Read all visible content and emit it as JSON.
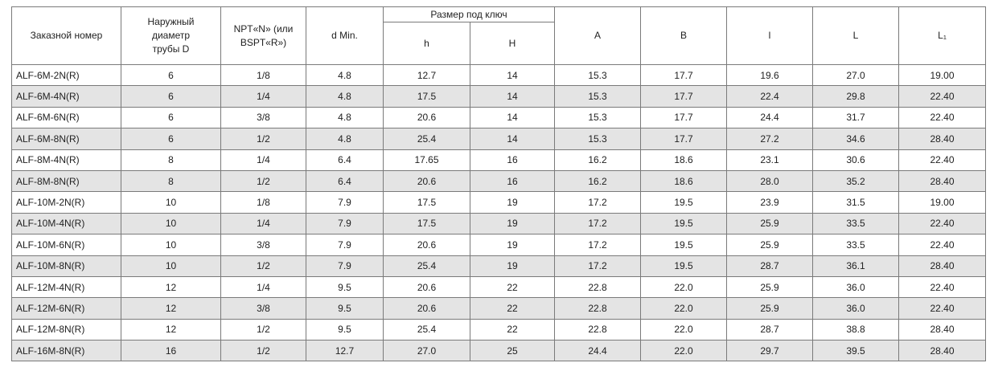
{
  "table": {
    "group": "Размер под ключ",
    "headers": [
      "Заказной номер",
      "Наружный диаметр трубы D",
      "NPT«N» (или BSPT«R»)",
      "d Min.",
      "h",
      "H",
      "A",
      "B",
      "l",
      "L",
      "L₁"
    ],
    "rows": [
      [
        "ALF-6M-2N(R)",
        "6",
        "1/8",
        "4.8",
        "12.7",
        "14",
        "15.3",
        "17.7",
        "19.6",
        "27.0",
        "19.00"
      ],
      [
        "ALF-6M-4N(R)",
        "6",
        "1/4",
        "4.8",
        "17.5",
        "14",
        "15.3",
        "17.7",
        "22.4",
        "29.8",
        "22.40"
      ],
      [
        "ALF-6M-6N(R)",
        "6",
        "3/8",
        "4.8",
        "20.6",
        "14",
        "15.3",
        "17.7",
        "24.4",
        "31.7",
        "22.40"
      ],
      [
        "ALF-6M-8N(R)",
        "6",
        "1/2",
        "4.8",
        "25.4",
        "14",
        "15.3",
        "17.7",
        "27.2",
        "34.6",
        "28.40"
      ],
      [
        "ALF-8M-4N(R)",
        "8",
        "1/4",
        "6.4",
        "17.65",
        "16",
        "16.2",
        "18.6",
        "23.1",
        "30.6",
        "22.40"
      ],
      [
        "ALF-8M-8N(R)",
        "8",
        "1/2",
        "6.4",
        "20.6",
        "16",
        "16.2",
        "18.6",
        "28.0",
        "35.2",
        "28.40"
      ],
      [
        "ALF-10M-2N(R)",
        "10",
        "1/8",
        "7.9",
        "17.5",
        "19",
        "17.2",
        "19.5",
        "23.9",
        "31.5",
        "19.00"
      ],
      [
        "ALF-10M-4N(R)",
        "10",
        "1/4",
        "7.9",
        "17.5",
        "19",
        "17.2",
        "19.5",
        "25.9",
        "33.5",
        "22.40"
      ],
      [
        "ALF-10M-6N(R)",
        "10",
        "3/8",
        "7.9",
        "20.6",
        "19",
        "17.2",
        "19.5",
        "25.9",
        "33.5",
        "22.40"
      ],
      [
        "ALF-10M-8N(R)",
        "10",
        "1/2",
        "7.9",
        "25.4",
        "19",
        "17.2",
        "19.5",
        "28.7",
        "36.1",
        "28.40"
      ],
      [
        "ALF-12M-4N(R)",
        "12",
        "1/4",
        "9.5",
        "20.6",
        "22",
        "22.8",
        "22.0",
        "25.9",
        "36.0",
        "22.40"
      ],
      [
        "ALF-12M-6N(R)",
        "12",
        "3/8",
        "9.5",
        "20.6",
        "22",
        "22.8",
        "22.0",
        "25.9",
        "36.0",
        "22.40"
      ],
      [
        "ALF-12M-8N(R)",
        "12",
        "1/2",
        "9.5",
        "25.4",
        "22",
        "22.8",
        "22.0",
        "28.7",
        "38.8",
        "28.40"
      ],
      [
        "ALF-16M-8N(R)",
        "16",
        "1/2",
        "12.7",
        "27.0",
        "25",
        "24.4",
        "22.0",
        "29.7",
        "39.5",
        "28.40"
      ]
    ]
  }
}
